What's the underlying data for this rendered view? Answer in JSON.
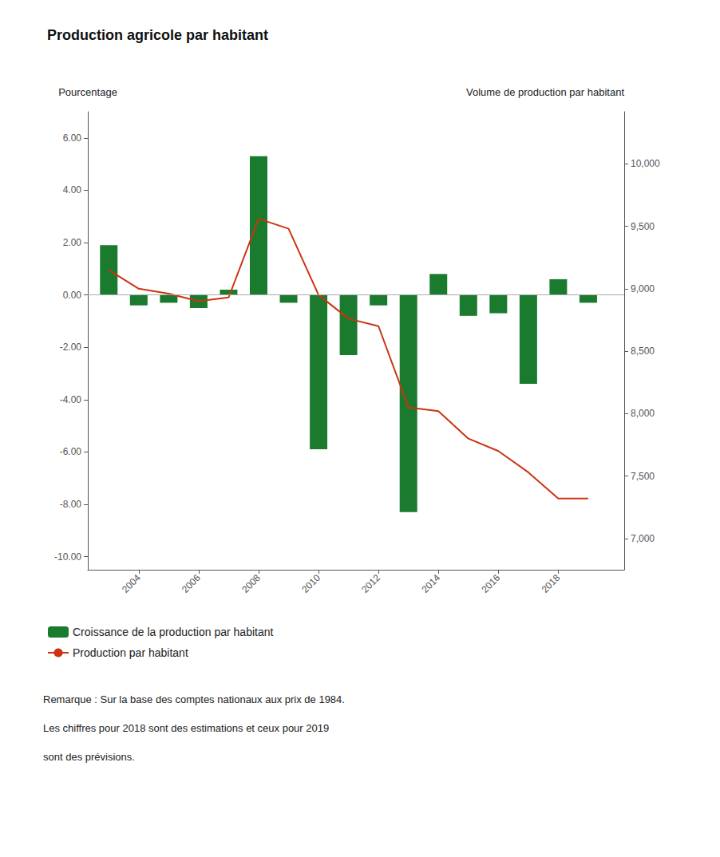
{
  "chart_data": {
    "type": "bar",
    "title": "Production agricole par habitant",
    "ylabel": "Pourcentage",
    "y2label": "Volume de production par habitant",
    "x": [
      2003,
      2004,
      2005,
      2006,
      2007,
      2008,
      2009,
      2010,
      2011,
      2012,
      2013,
      2014,
      2015,
      2016,
      2017,
      2018,
      2019
    ],
    "xlim": [
      2002.3,
      2020.2
    ],
    "xticks": [
      2004,
      2006,
      2008,
      2010,
      2012,
      2014,
      2016,
      2018
    ],
    "series": [
      {
        "name": "Croissance de la production par habitant",
        "type": "bar",
        "color": "#1a7a2e",
        "values": [
          1.9,
          -0.4,
          -0.3,
          -0.5,
          0.2,
          5.3,
          -0.3,
          -5.9,
          -2.3,
          -0.4,
          -8.3,
          0.8,
          -0.8,
          -0.7,
          -3.4,
          0.6,
          -0.3
        ]
      },
      {
        "name": "Production par habitant",
        "type": "line",
        "color": "#cc3311",
        "axis": "y2",
        "values": [
          9150,
          9000,
          8960,
          8900,
          8930,
          9560,
          9480,
          8950,
          8760,
          8700,
          8050,
          8020,
          7800,
          7700,
          7530,
          7320,
          7320
        ]
      }
    ],
    "ylim": [
      -10.5,
      7.0
    ],
    "yticks": [
      {
        "value": -10.0,
        "label": "-10.00"
      },
      {
        "value": -8.0,
        "label": "-8.00"
      },
      {
        "value": -6.0,
        "label": "-6.00"
      },
      {
        "value": -4.0,
        "label": "-4.00"
      },
      {
        "value": -2.0,
        "label": "-2.00"
      },
      {
        "value": 0.0,
        "label": "0.00"
      },
      {
        "value": 2.0,
        "label": "2.00"
      },
      {
        "value": 4.0,
        "label": "4.00"
      },
      {
        "value": 6.0,
        "label": "6.00"
      }
    ],
    "y2lim": [
      6750,
      10417
    ],
    "y2ticks": [
      {
        "value": 7000,
        "label": "7,000"
      },
      {
        "value": 7500,
        "label": "7,500"
      },
      {
        "value": 8000,
        "label": "8,000"
      },
      {
        "value": 8500,
        "label": "8,500"
      },
      {
        "value": 9000,
        "label": "9,000"
      },
      {
        "value": 9500,
        "label": "9,500"
      },
      {
        "value": 10000,
        "label": "10,000"
      }
    ],
    "annotations": [
      "Remarque : Sur la base des comptes nationaux aux prix de 1984.",
      "Les chiffres pour 2018 sont des estimations et ceux pour 2019",
      "sont des prévisions."
    ],
    "legend": "bottom",
    "grid": false
  }
}
